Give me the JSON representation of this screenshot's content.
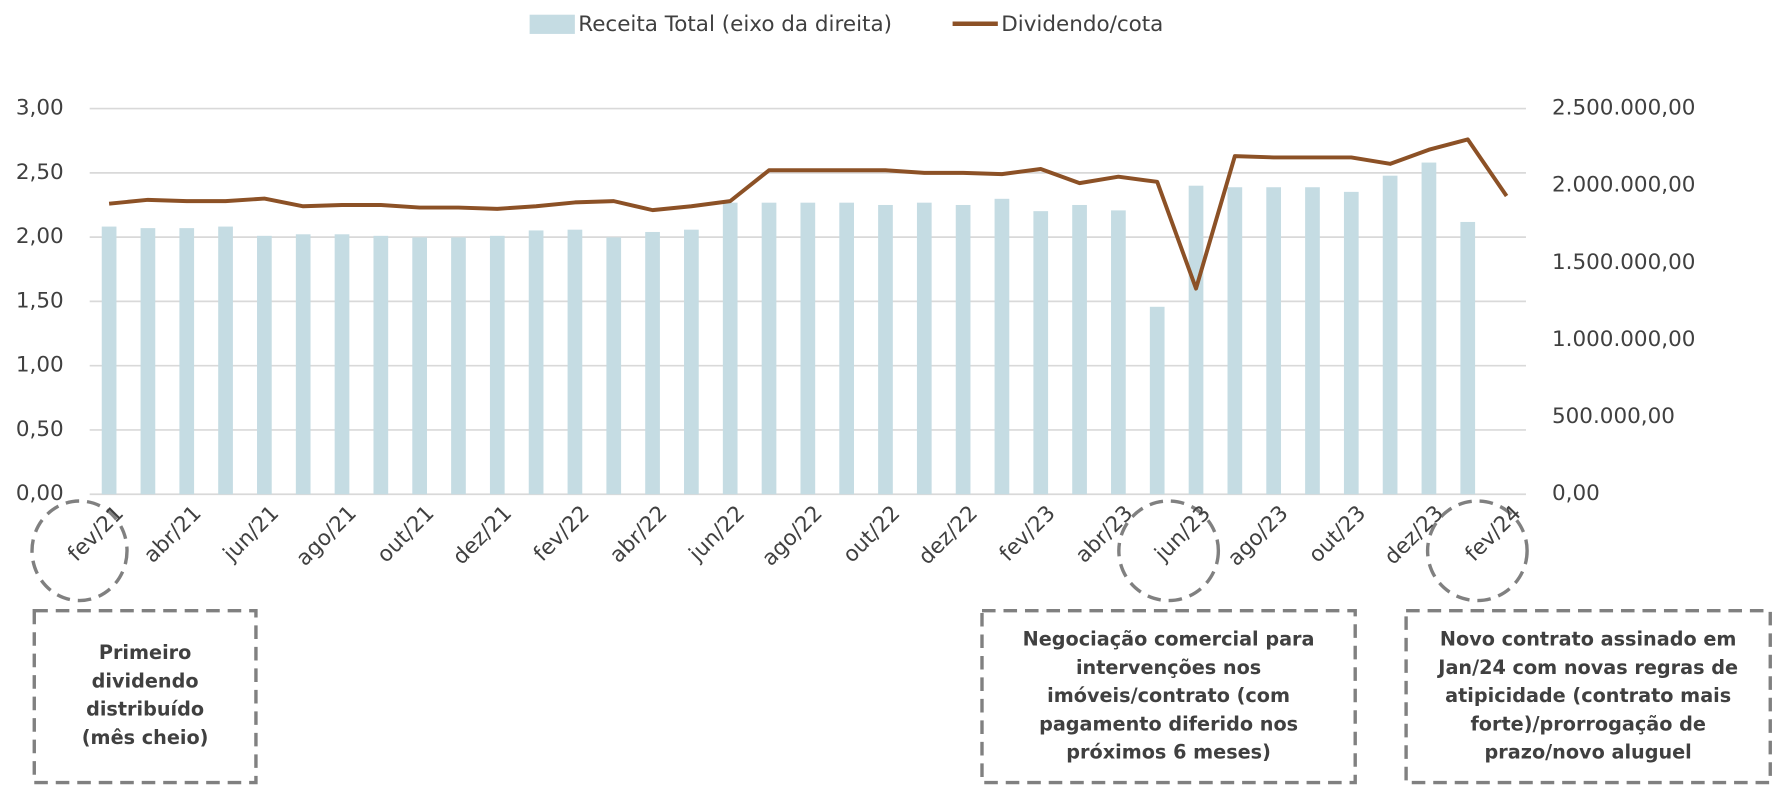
{
  "chart_data": {
    "type": "bar_line",
    "categories": [
      "fev/21",
      null,
      "abr/21",
      null,
      "jun/21",
      null,
      "ago/21",
      null,
      "out/21",
      null,
      "dez/21",
      null,
      "fev/22",
      null,
      "abr/22",
      null,
      "jun/22",
      null,
      "ago/22",
      null,
      "out/22",
      null,
      "dez/22",
      null,
      "fev/23",
      null,
      "abr/23",
      null,
      "jun/23",
      null,
      "ago/23",
      null,
      "out/23",
      null,
      "dez/23",
      null,
      "fev/24"
    ],
    "series": [
      {
        "name": "Receita Total (eixo da direita)",
        "type": "bar",
        "axis": "y2",
        "color": "#c5dce3",
        "values": [
          1735000,
          1725000,
          1725000,
          1735000,
          1675000,
          1685000,
          1685000,
          1675000,
          1665000,
          1665000,
          1675000,
          1710000,
          1715000,
          1665000,
          1700000,
          1715000,
          1890000,
          1890000,
          1890000,
          1890000,
          1875000,
          1890000,
          1875000,
          1915000,
          1835000,
          1875000,
          1840000,
          1215000,
          2000000,
          1990000,
          1990000,
          1990000,
          1960000,
          2065000,
          2150000,
          1765000,
          null
        ]
      },
      {
        "name": "Dividendo/cota",
        "type": "line",
        "color": "#8c5126",
        "values": [
          2.26,
          2.29,
          2.28,
          2.28,
          2.3,
          2.24,
          2.25,
          2.25,
          2.23,
          2.23,
          2.22,
          2.24,
          2.27,
          2.28,
          2.21,
          2.24,
          2.28,
          2.52,
          2.52,
          2.52,
          2.52,
          2.5,
          2.5,
          2.49,
          2.53,
          2.42,
          2.47,
          2.43,
          1.6,
          2.63,
          2.62,
          2.62,
          2.62,
          2.57,
          2.68,
          2.76,
          2.32
        ]
      }
    ],
    "ylim": [
      0,
      3
    ],
    "yticks": [
      {
        "value": 0,
        "label": "0,00"
      },
      {
        "value": 0.5,
        "label": "0,50"
      },
      {
        "value": 1,
        "label": "1,00"
      },
      {
        "value": 1.5,
        "label": "1,50"
      },
      {
        "value": 2,
        "label": "2,00"
      },
      {
        "value": 2.5,
        "label": "2,50"
      },
      {
        "value": 3,
        "label": "3,00"
      }
    ],
    "y2lim": [
      0,
      2500000
    ],
    "y2ticks": [
      {
        "value": 0,
        "label": "0,00"
      },
      {
        "value": 500000,
        "label": "500.000,00"
      },
      {
        "value": 1000000,
        "label": "1.000.000,00"
      },
      {
        "value": 1500000,
        "label": "1.500.000,00"
      },
      {
        "value": 2000000,
        "label": "2.000.000,00"
      },
      {
        "value": 2500000,
        "label": "2.500.000,00"
      }
    ],
    "grid": true,
    "legend": "top",
    "annotations": [
      {
        "lines": [
          "Primeiro",
          "dividendo",
          "distribuído",
          "(mês cheio)"
        ]
      },
      {
        "lines": [
          "Negociação comercial para",
          "intervenções nos",
          "imóveis/contrato (com",
          "pagamento diferido nos",
          "próximos 6 meses)"
        ]
      },
      {
        "lines": [
          "Novo contrato assinado em",
          "Jan/24 com novas regras de",
          "atipicidade (contrato mais",
          "forte)/prorrogação de",
          "prazo/novo aluguel"
        ]
      }
    ]
  }
}
